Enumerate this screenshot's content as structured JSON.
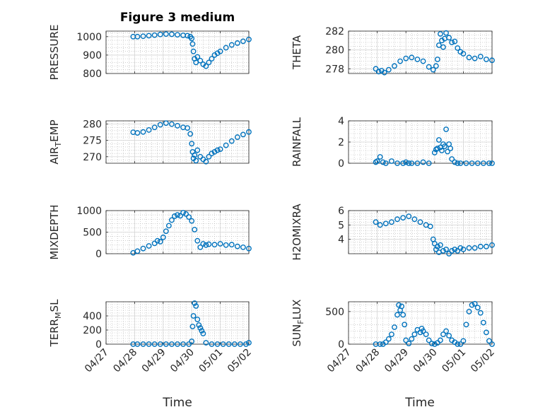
{
  "title": "Figure 3 medium",
  "colors": {
    "marker": "#0072BD",
    "axis": "#262626",
    "grid": "#b0b0b0"
  },
  "chart_data": [
    {
      "type": "scatter",
      "ylabel": "PRESSURE",
      "ylim": [
        800,
        1030
      ],
      "yticks": [
        800,
        900,
        1000
      ],
      "x": [
        0.95,
        1.1,
        1.3,
        1.5,
        1.7,
        1.9,
        2.1,
        2.3,
        2.5,
        2.7,
        2.85,
        2.95,
        3.0,
        3.03,
        3.06,
        3.1,
        3.15,
        3.2,
        3.3,
        3.4,
        3.5,
        3.6,
        3.7,
        3.8,
        3.9,
        4.0,
        4.2,
        4.4,
        4.6,
        4.8,
        5.0
      ],
      "y": [
        1000,
        1000,
        1002,
        1005,
        1008,
        1012,
        1014,
        1013,
        1010,
        1007,
        1005,
        1000,
        990,
        960,
        920,
        880,
        860,
        890,
        870,
        850,
        840,
        860,
        880,
        900,
        910,
        920,
        940,
        955,
        965,
        975,
        985
      ]
    },
    {
      "type": "scatter",
      "ylabel": "THETA",
      "ylim": [
        277.5,
        282
      ],
      "yticks": [
        278,
        280,
        282
      ],
      "x": [
        0.95,
        1.05,
        1.15,
        1.25,
        1.4,
        1.6,
        1.8,
        2.0,
        2.2,
        2.4,
        2.6,
        2.8,
        2.95,
        3.05,
        3.1,
        3.15,
        3.2,
        3.25,
        3.3,
        3.35,
        3.4,
        3.5,
        3.6,
        3.7,
        3.8,
        3.9,
        4.0,
        4.2,
        4.4,
        4.6,
        4.8,
        5.0
      ],
      "y": [
        278.0,
        277.7,
        277.8,
        277.6,
        277.9,
        278.3,
        278.8,
        279.1,
        279.2,
        279.0,
        278.8,
        278.2,
        277.9,
        278.3,
        279.0,
        280.5,
        281.7,
        281.0,
        280.3,
        281.2,
        281.8,
        281.3,
        280.8,
        280.9,
        280.2,
        279.8,
        279.6,
        279.2,
        279.1,
        279.3,
        279.0,
        278.9
      ]
    },
    {
      "type": "scatter",
      "ylabel": "AIR_TEMP",
      "ylim": [
        268,
        281
      ],
      "yticks": [
        270,
        275,
        280
      ],
      "x": [
        0.95,
        1.1,
        1.3,
        1.5,
        1.7,
        1.9,
        2.1,
        2.3,
        2.5,
        2.7,
        2.85,
        2.95,
        3.0,
        3.03,
        3.06,
        3.1,
        3.15,
        3.2,
        3.3,
        3.4,
        3.5,
        3.6,
        3.7,
        3.8,
        3.9,
        4.0,
        4.2,
        4.4,
        4.6,
        4.8,
        5.0
      ],
      "y": [
        277.5,
        277.3,
        277.6,
        278.2,
        279.0,
        279.8,
        280.3,
        280.0,
        279.5,
        279.0,
        278.8,
        277.0,
        274.0,
        271.5,
        269.5,
        270.5,
        268.8,
        272.0,
        270.0,
        269.2,
        268.5,
        270.0,
        271.0,
        271.5,
        272.0,
        272.3,
        273.5,
        274.8,
        276.0,
        276.8,
        277.6
      ]
    },
    {
      "type": "scatter",
      "ylabel": "RAINFALL",
      "ylim": [
        0,
        4
      ],
      "yticks": [
        0,
        2,
        4
      ],
      "x": [
        0.95,
        1.0,
        1.1,
        1.2,
        1.3,
        1.5,
        1.7,
        1.9,
        2.0,
        2.1,
        2.2,
        2.4,
        2.6,
        2.8,
        3.0,
        3.05,
        3.1,
        3.15,
        3.2,
        3.25,
        3.3,
        3.35,
        3.4,
        3.45,
        3.5,
        3.55,
        3.6,
        3.7,
        3.8,
        3.9,
        4.1,
        4.3,
        4.5,
        4.7,
        4.9,
        5.0
      ],
      "y": [
        0.1,
        0.2,
        0.6,
        0.1,
        0.0,
        0.2,
        0.0,
        0.0,
        0.1,
        0.0,
        0.0,
        0.0,
        0.1,
        0.0,
        1.0,
        1.3,
        1.4,
        2.2,
        1.5,
        1.2,
        1.8,
        1.6,
        3.2,
        1.1,
        1.8,
        1.4,
        0.4,
        0.1,
        0.0,
        0.0,
        0.0,
        0.0,
        0.0,
        0.0,
        0.0,
        0.0
      ]
    },
    {
      "type": "scatter",
      "ylabel": "MIXDEPTH",
      "ylim": [
        0,
        1000
      ],
      "yticks": [
        0,
        500,
        1000
      ],
      "x": [
        0.95,
        1.1,
        1.3,
        1.5,
        1.7,
        1.8,
        1.9,
        2.0,
        2.1,
        2.2,
        2.3,
        2.4,
        2.5,
        2.6,
        2.7,
        2.8,
        2.9,
        3.0,
        3.1,
        3.2,
        3.3,
        3.4,
        3.5,
        3.6,
        3.8,
        4.0,
        4.2,
        4.4,
        4.6,
        4.8,
        5.0
      ],
      "y": [
        20,
        60,
        120,
        180,
        240,
        300,
        280,
        380,
        520,
        650,
        780,
        870,
        900,
        880,
        950,
        920,
        850,
        760,
        560,
        300,
        150,
        230,
        200,
        220,
        210,
        230,
        200,
        210,
        170,
        150,
        120
      ]
    },
    {
      "type": "scatter",
      "ylabel": "H2OMIXRA",
      "ylim": [
        3,
        6
      ],
      "yticks": [
        4,
        5,
        6
      ],
      "x": [
        0.95,
        1.1,
        1.3,
        1.5,
        1.7,
        1.9,
        2.1,
        2.3,
        2.5,
        2.7,
        2.85,
        2.95,
        3.0,
        3.05,
        3.1,
        3.15,
        3.2,
        3.3,
        3.4,
        3.5,
        3.6,
        3.7,
        3.8,
        3.9,
        4.0,
        4.2,
        4.4,
        4.6,
        4.8,
        5.0
      ],
      "y": [
        5.2,
        5.0,
        5.1,
        5.2,
        5.4,
        5.5,
        5.6,
        5.4,
        5.2,
        5.0,
        4.9,
        4.0,
        3.7,
        3.3,
        3.5,
        3.1,
        3.6,
        3.2,
        3.3,
        3.0,
        3.2,
        3.3,
        3.2,
        3.4,
        3.3,
        3.4,
        3.4,
        3.5,
        3.5,
        3.6
      ]
    },
    {
      "type": "scatter",
      "ylabel": "TERR_MSL",
      "ylim": [
        0,
        600
      ],
      "yticks": [
        0,
        200,
        400
      ],
      "x": [
        0.95,
        1.1,
        1.3,
        1.5,
        1.7,
        1.9,
        2.1,
        2.3,
        2.5,
        2.7,
        2.9,
        3.0,
        3.03,
        3.06,
        3.1,
        3.15,
        3.2,
        3.25,
        3.3,
        3.35,
        3.4,
        3.5,
        3.7,
        3.9,
        4.1,
        4.3,
        4.5,
        4.7,
        4.9,
        5.0
      ],
      "y": [
        0,
        0,
        0,
        0,
        0,
        0,
        0,
        0,
        0,
        0,
        0,
        40,
        250,
        400,
        580,
        540,
        350,
        270,
        230,
        190,
        150,
        20,
        0,
        0,
        0,
        0,
        0,
        0,
        0,
        20
      ]
    },
    {
      "type": "scatter",
      "ylabel": "SUN_FLUX",
      "ylim": [
        0,
        650
      ],
      "yticks": [
        0,
        500
      ],
      "x": [
        0.95,
        1.1,
        1.2,
        1.3,
        1.4,
        1.5,
        1.6,
        1.7,
        1.75,
        1.8,
        1.85,
        1.9,
        1.95,
        2.0,
        2.1,
        2.2,
        2.3,
        2.4,
        2.5,
        2.55,
        2.6,
        2.7,
        2.8,
        2.9,
        3.0,
        3.1,
        3.2,
        3.3,
        3.4,
        3.5,
        3.6,
        3.7,
        3.8,
        3.9,
        4.0,
        4.1,
        4.2,
        4.3,
        4.4,
        4.5,
        4.6,
        4.7,
        4.8,
        4.9,
        5.0
      ],
      "y": [
        0,
        0,
        0,
        30,
        80,
        150,
        260,
        450,
        600,
        520,
        580,
        450,
        300,
        60,
        10,
        80,
        150,
        220,
        180,
        240,
        200,
        150,
        60,
        10,
        0,
        20,
        60,
        150,
        200,
        130,
        60,
        30,
        0,
        0,
        50,
        300,
        500,
        600,
        620,
        560,
        480,
        330,
        180,
        50,
        0
      ]
    }
  ],
  "xlim": [
    0,
    5
  ],
  "xticks": [
    0,
    1,
    2,
    3,
    4,
    5
  ],
  "xticklabels": [
    "04/27",
    "04/28",
    "04/29",
    "04/30",
    "05/01",
    "05/02"
  ],
  "xlabel": "Time"
}
